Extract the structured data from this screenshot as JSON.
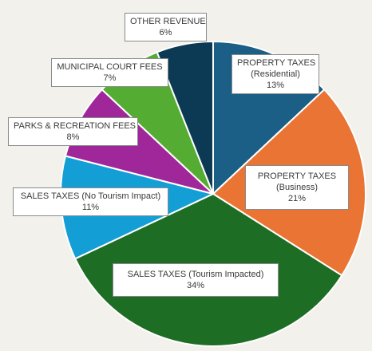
{
  "chart_data": {
    "type": "pie",
    "title": "",
    "unit": "%",
    "slices": [
      {
        "name": "PROPERTY TAXES",
        "sub": "(Residential)",
        "value": 13,
        "label": "13%",
        "color": "#1b5e86"
      },
      {
        "name": "PROPERTY TAXES",
        "sub": "(Business)",
        "value": 21,
        "label": "21%",
        "color": "#ea7434"
      },
      {
        "name": "SALES TAXES (Tourism Impacted)",
        "sub": "",
        "value": 34,
        "label": "34%",
        "color": "#1d6e24"
      },
      {
        "name": "SALES TAXES (No Tourism Impact)",
        "sub": "",
        "value": 11,
        "label": "11%",
        "color": "#139fd6"
      },
      {
        "name": "PARKS & RECREATION FEES",
        "sub": "",
        "value": 8,
        "label": "8%",
        "color": "#a0279a"
      },
      {
        "name": "MUNICIPAL COURT FEES",
        "sub": "",
        "value": 7,
        "label": "7%",
        "color": "#55ac32"
      },
      {
        "name": "OTHER REVENUE",
        "sub": "",
        "value": 6,
        "label": "6%",
        "color": "#0c3a54"
      }
    ],
    "start_direction": "top",
    "direction": "clockwise",
    "legend": "none",
    "data_labels": "callout-boxes"
  }
}
